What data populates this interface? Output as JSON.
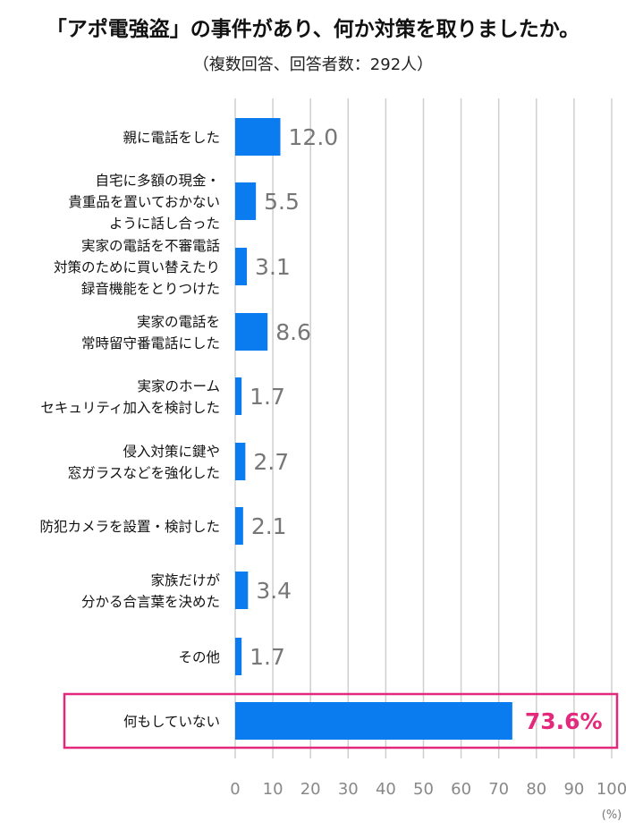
{
  "chart_data": {
    "type": "bar",
    "orientation": "horizontal",
    "title": "「アポ電強盗」の事件があり、何か対策を取りましたか。",
    "subtitle": "（複数回答、回答者数：292人）",
    "unit_label": "(%)",
    "xlim": [
      0,
      100
    ],
    "xticks": [
      "0",
      "10",
      "20",
      "30",
      "40",
      "50",
      "60",
      "70",
      "80",
      "90",
      "100"
    ],
    "grid": true,
    "bar_color": "#0a7cf0",
    "highlight_color": "#e4287c",
    "categories": [
      [
        "親に電話をした"
      ],
      [
        "自宅に多額の現金・",
        "貴重品を置いておかない",
        "ように話し合った"
      ],
      [
        "実家の電話を不審電話",
        "対策のために買い替えたり",
        "録音機能をとりつけた"
      ],
      [
        "実家の電話を",
        "常時留守番電話にした"
      ],
      [
        "実家のホーム",
        "セキュリティ加入を検討した"
      ],
      [
        "侵入対策に鍵や",
        "窓ガラスなどを強化した"
      ],
      [
        "防犯カメラを設置・検討した"
      ],
      [
        "家族だけが",
        "分かる合言葉を決めた"
      ],
      [
        "その他"
      ],
      [
        "何もしていない"
      ]
    ],
    "values": [
      12.0,
      5.5,
      3.1,
      8.6,
      1.7,
      2.7,
      2.1,
      3.4,
      1.7,
      73.6
    ],
    "value_labels": [
      "12.0",
      "5.5",
      "3.1",
      "8.6",
      "1.7",
      "2.7",
      "2.1",
      "3.4",
      "1.7",
      "73.6%"
    ],
    "highlight_index": 9
  }
}
